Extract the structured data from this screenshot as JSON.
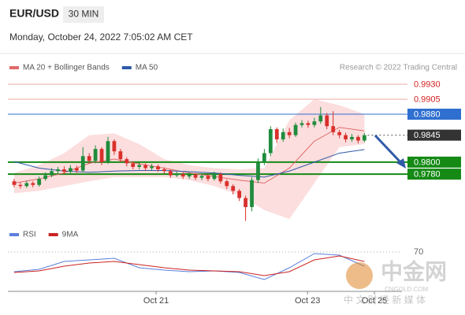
{
  "header": {
    "symbol": "EUR/USD",
    "interval": "30 MIN",
    "timestamp": "Monday, October 24, 2022 7:05:02 AM CET",
    "credit": "Research © 2022 Trading Central"
  },
  "watermark": {
    "brand": "中金网",
    "site": "CNGOLD.COM",
    "tagline": "中 文 财 经 新 媒 体"
  },
  "chart_data": [
    {
      "type": "candlestick",
      "xlim": [
        -1,
        62
      ],
      "ylim": [
        0.9696,
        0.9972
      ],
      "up_color": "#1f8c3c",
      "down_color": "#d9302c",
      "x": [
        0,
        1,
        2,
        3,
        4,
        5,
        6,
        7,
        8,
        9,
        10,
        11,
        12,
        13,
        14,
        15,
        16,
        17,
        18,
        19,
        20,
        21,
        22,
        23,
        24,
        25,
        26,
        27,
        28,
        29,
        30,
        31,
        32,
        33,
        34,
        35,
        36,
        37,
        38,
        39,
        40,
        41,
        42,
        43,
        44,
        45,
        46,
        47,
        48,
        49,
        50,
        51,
        52,
        53,
        54,
        55,
        56
      ],
      "open": [
        0.9768,
        0.9762,
        0.976,
        0.9765,
        0.9762,
        0.9772,
        0.9778,
        0.9785,
        0.9788,
        0.9784,
        0.979,
        0.9786,
        0.981,
        0.9802,
        0.9822,
        0.98,
        0.9835,
        0.9818,
        0.9805,
        0.9798,
        0.9792,
        0.9795,
        0.979,
        0.9793,
        0.9788,
        0.9785,
        0.9778,
        0.978,
        0.9776,
        0.9779,
        0.9774,
        0.9777,
        0.9772,
        0.978,
        0.9768,
        0.976,
        0.9752,
        0.974,
        0.9725,
        0.977,
        0.98,
        0.9815,
        0.9855,
        0.9838,
        0.985,
        0.9845,
        0.9862,
        0.9865,
        0.9862,
        0.9868,
        0.9878,
        0.986,
        0.985,
        0.9845,
        0.9838,
        0.9842,
        0.9836
      ],
      "high": [
        0.9772,
        0.9766,
        0.9769,
        0.9768,
        0.9776,
        0.9783,
        0.979,
        0.9792,
        0.9793,
        0.9795,
        0.9794,
        0.9825,
        0.9815,
        0.9828,
        0.9825,
        0.9842,
        0.9838,
        0.9822,
        0.9808,
        0.9801,
        0.9799,
        0.9798,
        0.9797,
        0.9796,
        0.9791,
        0.9788,
        0.9784,
        0.9783,
        0.9783,
        0.9782,
        0.9781,
        0.978,
        0.9784,
        0.9783,
        0.9771,
        0.9763,
        0.9755,
        0.9744,
        0.9775,
        0.9806,
        0.9822,
        0.986,
        0.9858,
        0.9856,
        0.9857,
        0.9866,
        0.987,
        0.9869,
        0.9874,
        0.9892,
        0.9882,
        0.9885,
        0.9854,
        0.9849,
        0.9847,
        0.9845,
        0.9849
      ],
      "low": [
        0.9758,
        0.9756,
        0.9757,
        0.9758,
        0.9759,
        0.9769,
        0.9775,
        0.9781,
        0.978,
        0.978,
        0.9782,
        0.9783,
        0.9797,
        0.9798,
        0.9795,
        0.9797,
        0.9812,
        0.98,
        0.9793,
        0.9788,
        0.9788,
        0.9786,
        0.9786,
        0.9784,
        0.9781,
        0.9774,
        0.9775,
        0.9772,
        0.9772,
        0.977,
        0.977,
        0.9768,
        0.9769,
        0.9764,
        0.9755,
        0.9746,
        0.9735,
        0.9702,
        0.9718,
        0.9765,
        0.9795,
        0.981,
        0.9832,
        0.9834,
        0.984,
        0.9842,
        0.9858,
        0.9857,
        0.9858,
        0.9864,
        0.9855,
        0.9845,
        0.984,
        0.9833,
        0.9834,
        0.9831,
        0.9833
      ],
      "close": [
        0.9762,
        0.976,
        0.9765,
        0.9762,
        0.9772,
        0.9778,
        0.9785,
        0.9788,
        0.9784,
        0.979,
        0.9786,
        0.981,
        0.9802,
        0.9822,
        0.98,
        0.9835,
        0.9818,
        0.9805,
        0.9798,
        0.9792,
        0.9795,
        0.979,
        0.9793,
        0.9788,
        0.9785,
        0.9778,
        0.978,
        0.9776,
        0.9779,
        0.9774,
        0.9777,
        0.9772,
        0.978,
        0.9768,
        0.976,
        0.9752,
        0.974,
        0.9725,
        0.977,
        0.98,
        0.9815,
        0.9855,
        0.9838,
        0.985,
        0.9845,
        0.9862,
        0.9865,
        0.9862,
        0.9868,
        0.9878,
        0.986,
        0.985,
        0.9845,
        0.9838,
        0.9842,
        0.9836,
        0.9845
      ],
      "band": {
        "color": "#fbd3d3",
        "x": [
          0,
          4,
          8,
          12,
          16,
          20,
          24,
          28,
          32,
          36,
          40,
          44,
          48,
          52,
          56
        ],
        "upper": [
          0.9782,
          0.9795,
          0.9815,
          0.9845,
          0.9848,
          0.983,
          0.9805,
          0.9795,
          0.979,
          0.9788,
          0.979,
          0.987,
          0.9905,
          0.9895,
          0.988
        ],
        "lower": [
          0.9748,
          0.9752,
          0.976,
          0.9768,
          0.9775,
          0.9775,
          0.9775,
          0.977,
          0.976,
          0.9745,
          0.972,
          0.9705,
          0.9765,
          0.9825,
          0.983
        ]
      },
      "series": [
        {
          "name": "MA 20 + Bollinger Bands",
          "color": "#e06a6a",
          "x": [
            0,
            4,
            8,
            12,
            16,
            20,
            24,
            28,
            32,
            36,
            40,
            44,
            48,
            52,
            56
          ],
          "values": [
            0.9765,
            0.9772,
            0.9782,
            0.9798,
            0.9805,
            0.9797,
            0.979,
            0.9782,
            0.9776,
            0.977,
            0.9765,
            0.979,
            0.9835,
            0.9858,
            0.9852
          ]
        },
        {
          "name": "MA 50",
          "color": "#2f5aa8",
          "x": [
            0,
            4,
            8,
            12,
            16,
            20,
            24,
            28,
            32,
            36,
            40,
            44,
            48,
            52,
            56
          ],
          "values": [
            0.9801,
            0.979,
            0.9785,
            0.9783,
            0.9785,
            0.9786,
            0.9786,
            0.9784,
            0.9782,
            0.9778,
            0.9775,
            0.9785,
            0.98,
            0.9815,
            0.9821
          ]
        }
      ],
      "levels": [
        {
          "value": 0.993,
          "label": "0.9930",
          "color": "#eeaaa4",
          "text_color": "#d62020",
          "style": "line"
        },
        {
          "value": 0.9905,
          "label": "0.9905",
          "color": "#eeaaa4",
          "text_color": "#d62020",
          "style": "line"
        },
        {
          "value": 0.988,
          "label": "0.9880",
          "color": "#2f6fd0",
          "text_color": "#ffffff",
          "style": "box"
        },
        {
          "value": 0.9845,
          "label": "0.9845",
          "color": "#333333",
          "text_color": "#ffffff",
          "style": "dotted"
        },
        {
          "value": 0.98,
          "label": "0.9800",
          "color": "#158a15",
          "text_color": "#ffffff",
          "style": "box"
        },
        {
          "value": 0.978,
          "label": "0.9780",
          "color": "#158a15",
          "text_color": "#ffffff",
          "style": "box"
        }
      ]
    },
    {
      "type": "line",
      "xlim": [
        -1,
        62
      ],
      "ylim": [
        20,
        90
      ],
      "yticks": [
        70
      ],
      "xticks": [
        {
          "value": 22.7,
          "label": "Oct 21"
        },
        {
          "value": 46.9,
          "label": "Oct 23"
        },
        {
          "value": 57.6,
          "label": "Oct 25"
        }
      ],
      "series": [
        {
          "name": "RSI",
          "color": "#5b7fdc",
          "x": [
            0,
            4,
            8,
            12,
            16,
            20,
            24,
            28,
            32,
            36,
            40,
            44,
            48,
            52,
            56
          ],
          "values": [
            45,
            48,
            58,
            60,
            62,
            50,
            47,
            45,
            46,
            44,
            35,
            50,
            68,
            66,
            52
          ]
        },
        {
          "name": "9MA",
          "color": "#cc2222",
          "x": [
            0,
            4,
            8,
            12,
            16,
            20,
            24,
            28,
            32,
            36,
            40,
            44,
            48,
            52,
            56
          ],
          "values": [
            44,
            46,
            52,
            56,
            58,
            54,
            50,
            47,
            46,
            45,
            40,
            45,
            60,
            65,
            58
          ]
        }
      ]
    }
  ]
}
